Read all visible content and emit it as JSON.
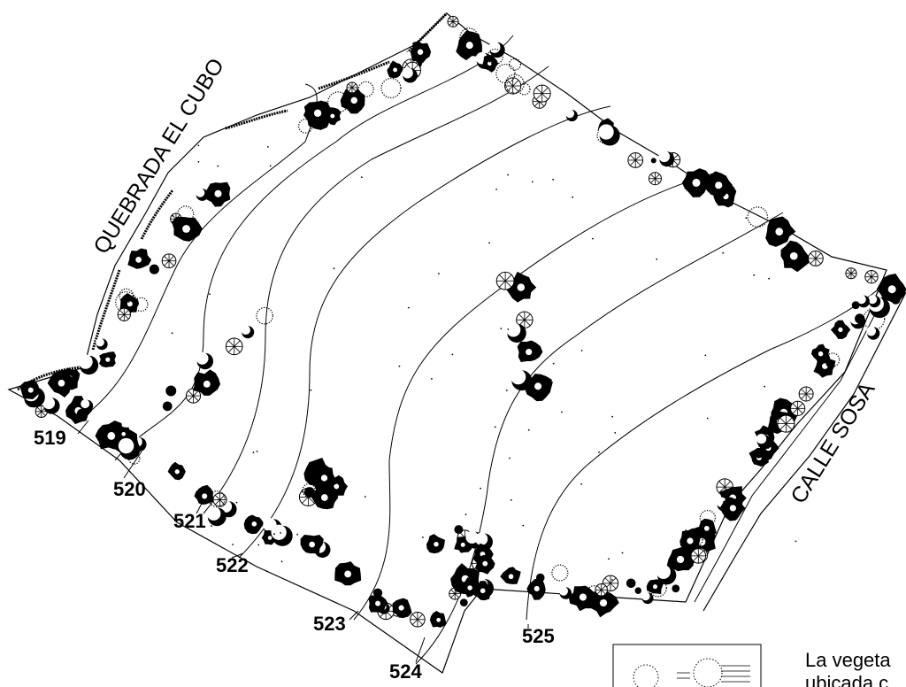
{
  "map": {
    "streets": {
      "north": "QUEBRADA EL CUBO",
      "east": "CALLE SOSA"
    },
    "contour_labels": [
      "519",
      "520",
      "521",
      "522",
      "523",
      "524",
      "525"
    ],
    "legend": {
      "line1": "La vegeta",
      "line2": "ubicada c"
    },
    "icons": [
      "tree-symbol",
      "shrub-symbol",
      "palm-symbol"
    ],
    "colors": {
      "ink": "#000000",
      "background": "#ffffff"
    }
  }
}
